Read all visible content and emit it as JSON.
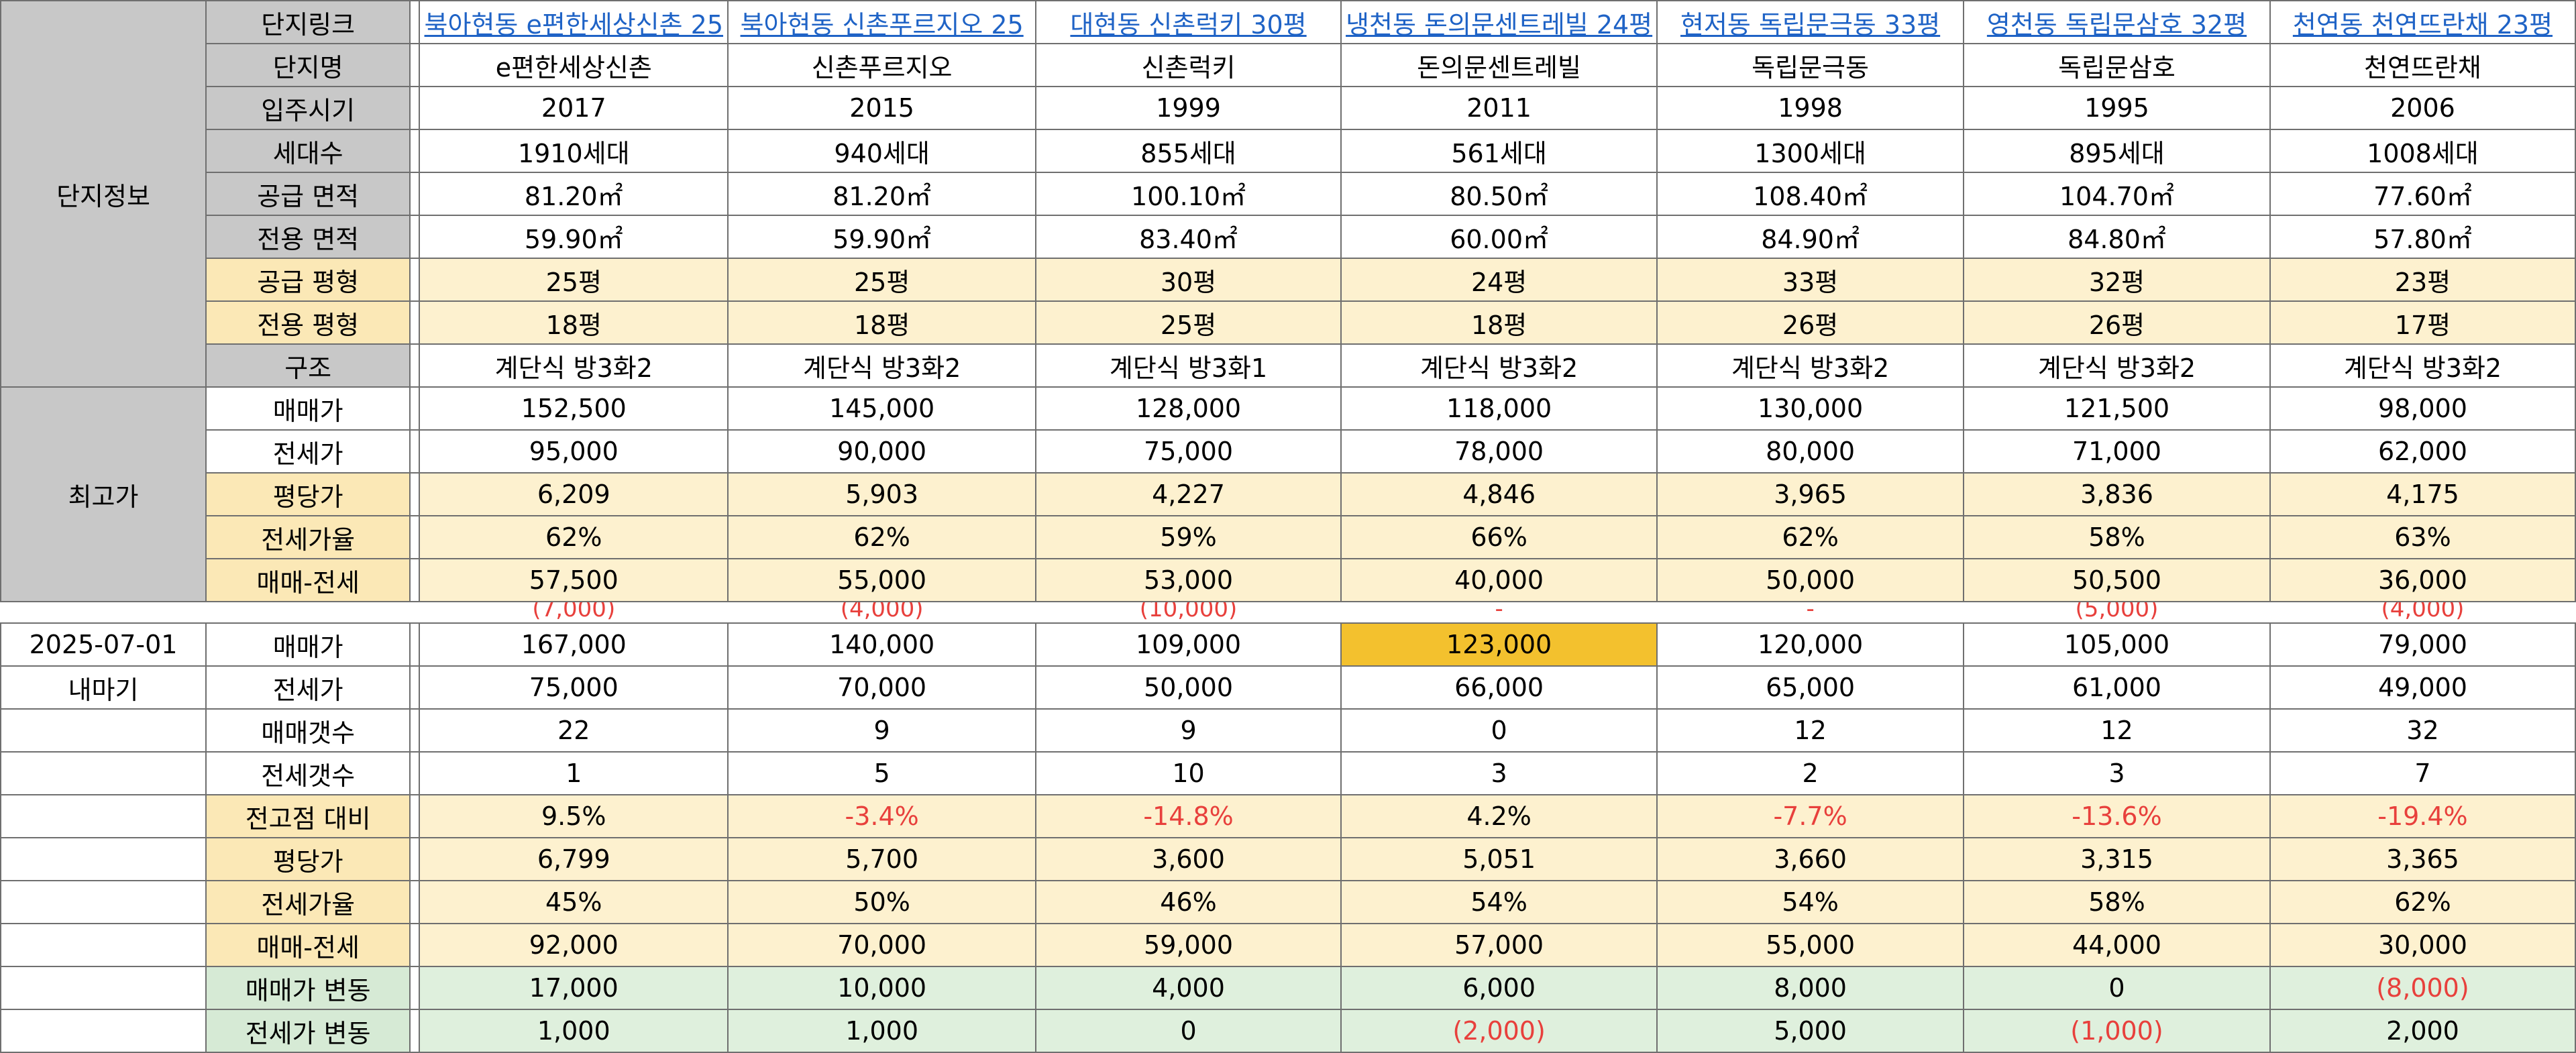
{
  "sections": {
    "info": "단지정보",
    "max": "최고가",
    "date": "2025-07-01",
    "cur": "내마기"
  },
  "labels": {
    "link": "단지링크",
    "name": "단지명",
    "year": "입주시기",
    "units": "세대수",
    "supply_area": "공급 면적",
    "excl_area": "전용 면적",
    "supply_py": "공급 평형",
    "excl_py": "전용 평형",
    "structure": "구조",
    "max_sale": "매매가",
    "max_jeonse": "전세가",
    "max_ppy": "평당가",
    "max_ratio": "전세가율",
    "max_gap": "매매-전세",
    "cur_sale": "매매가",
    "cur_jeonse": "전세가",
    "sale_cnt": "매매갯수",
    "jeonse_cnt": "전세갯수",
    "vs_peak": "전고점 대비",
    "cur_ppy": "평당가",
    "cur_ratio": "전세가율",
    "cur_gap": "매매-전세",
    "sale_change": "매매가 변동",
    "jeonse_change": "전세가 변동"
  },
  "columns": [
    {
      "link": "북아현동 e편한세상신촌 25",
      "name": "e편한세상신촌",
      "year": "2017",
      "units": "1910세대",
      "supply_area": "81.20㎡",
      "excl_area": "59.90㎡",
      "supply_py": "25평",
      "excl_py": "18평",
      "structure": "계단식 방3화2",
      "max_sale": "152,500",
      "max_jeonse": "95,000",
      "max_ppy": "6,209",
      "max_ratio": "62%",
      "max_gap": "57,500",
      "split": "(7,000)",
      "cur_sale": "167,000",
      "cur_jeonse": "75,000",
      "sale_cnt": "22",
      "jeonse_cnt": "1",
      "vs_peak": "9.5%",
      "cur_ppy": "6,799",
      "cur_ratio": "45%",
      "cur_gap": "92,000",
      "sale_change": "17,000",
      "jeonse_change": "1,000"
    },
    {
      "link": "북아현동 신촌푸르지오 25",
      "name": "신촌푸르지오",
      "year": "2015",
      "units": "940세대",
      "supply_area": "81.20㎡",
      "excl_area": "59.90㎡",
      "supply_py": "25평",
      "excl_py": "18평",
      "structure": "계단식 방3화2",
      "max_sale": "145,000",
      "max_jeonse": "90,000",
      "max_ppy": "5,903",
      "max_ratio": "62%",
      "max_gap": "55,000",
      "split": "(4,000)",
      "cur_sale": "140,000",
      "cur_jeonse": "70,000",
      "sale_cnt": "9",
      "jeonse_cnt": "5",
      "vs_peak": "-3.4%",
      "cur_ppy": "5,700",
      "cur_ratio": "50%",
      "cur_gap": "70,000",
      "sale_change": "10,000",
      "jeonse_change": "1,000"
    },
    {
      "link": "대현동 신촌럭키 30평",
      "name": "신촌럭키",
      "year": "1999",
      "units": "855세대",
      "supply_area": "100.10㎡",
      "excl_area": "83.40㎡",
      "supply_py": "30평",
      "excl_py": "25평",
      "structure": "계단식 방3화1",
      "max_sale": "128,000",
      "max_jeonse": "75,000",
      "max_ppy": "4,227",
      "max_ratio": "59%",
      "max_gap": "53,000",
      "split": "(10,000)",
      "cur_sale": "109,000",
      "cur_jeonse": "50,000",
      "sale_cnt": "9",
      "jeonse_cnt": "10",
      "vs_peak": "-14.8%",
      "cur_ppy": "3,600",
      "cur_ratio": "46%",
      "cur_gap": "59,000",
      "sale_change": "4,000",
      "jeonse_change": "0"
    },
    {
      "link": "냉천동 돈의문센트레빌 24평",
      "name": "돈의문센트레빌",
      "year": "2011",
      "units": "561세대",
      "supply_area": "80.50㎡",
      "excl_area": "60.00㎡",
      "supply_py": "24평",
      "excl_py": "18평",
      "structure": "계단식 방3화2",
      "max_sale": "118,000",
      "max_jeonse": "78,000",
      "max_ppy": "4,846",
      "max_ratio": "66%",
      "max_gap": "40,000",
      "split": "-",
      "cur_sale": "123,000",
      "cur_jeonse": "66,000",
      "sale_cnt": "0",
      "jeonse_cnt": "3",
      "vs_peak": "4.2%",
      "cur_ppy": "5,051",
      "cur_ratio": "54%",
      "cur_gap": "57,000",
      "sale_change": "6,000",
      "jeonse_change": "(2,000)"
    },
    {
      "link": "현저동 독립문극동 33평",
      "name": "독립문극동",
      "year": "1998",
      "units": "1300세대",
      "supply_area": "108.40㎡",
      "excl_area": "84.90㎡",
      "supply_py": "33평",
      "excl_py": "26평",
      "structure": "계단식 방3화2",
      "max_sale": "130,000",
      "max_jeonse": "80,000",
      "max_ppy": "3,965",
      "max_ratio": "62%",
      "max_gap": "50,000",
      "split": "-",
      "cur_sale": "120,000",
      "cur_jeonse": "65,000",
      "sale_cnt": "12",
      "jeonse_cnt": "2",
      "vs_peak": "-7.7%",
      "cur_ppy": "3,660",
      "cur_ratio": "54%",
      "cur_gap": "55,000",
      "sale_change": "8,000",
      "jeonse_change": "5,000"
    },
    {
      "link": "영천동 독립문삼호 32평",
      "name": "독립문삼호",
      "year": "1995",
      "units": "895세대",
      "supply_area": "104.70㎡",
      "excl_area": "84.80㎡",
      "supply_py": "32평",
      "excl_py": "26평",
      "structure": "계단식 방3화2",
      "max_sale": "121,500",
      "max_jeonse": "71,000",
      "max_ppy": "3,836",
      "max_ratio": "58%",
      "max_gap": "50,500",
      "split": "(5,000)",
      "cur_sale": "105,000",
      "cur_jeonse": "61,000",
      "sale_cnt": "12",
      "jeonse_cnt": "3",
      "vs_peak": "-13.6%",
      "cur_ppy": "3,315",
      "cur_ratio": "58%",
      "cur_gap": "44,000",
      "sale_change": "0",
      "jeonse_change": "(1,000)"
    },
    {
      "link": "천연동 천연뜨란채 23평",
      "name": "천연뜨란채",
      "year": "2006",
      "units": "1008세대",
      "supply_area": "77.60㎡",
      "excl_area": "57.80㎡",
      "supply_py": "23평",
      "excl_py": "17평",
      "structure": "계단식 방3화2",
      "max_sale": "98,000",
      "max_jeonse": "62,000",
      "max_ppy": "4,175",
      "max_ratio": "63%",
      "max_gap": "36,000",
      "split": "(4,000)",
      "cur_sale": "79,000",
      "cur_jeonse": "49,000",
      "sale_cnt": "32",
      "jeonse_cnt": "7",
      "vs_peak": "-19.4%",
      "cur_ppy": "3,365",
      "cur_ratio": "62%",
      "cur_gap": "30,000",
      "sale_change": "(8,000)",
      "jeonse_change": "2,000"
    }
  ],
  "colors": {
    "label_bg": "#c8c8c8",
    "yellow_row": "#fdf1cf",
    "green_row": "#dff0dd",
    "highlight": "#f3c12e",
    "negative": "#e8403c",
    "link": "#1f63c6"
  }
}
